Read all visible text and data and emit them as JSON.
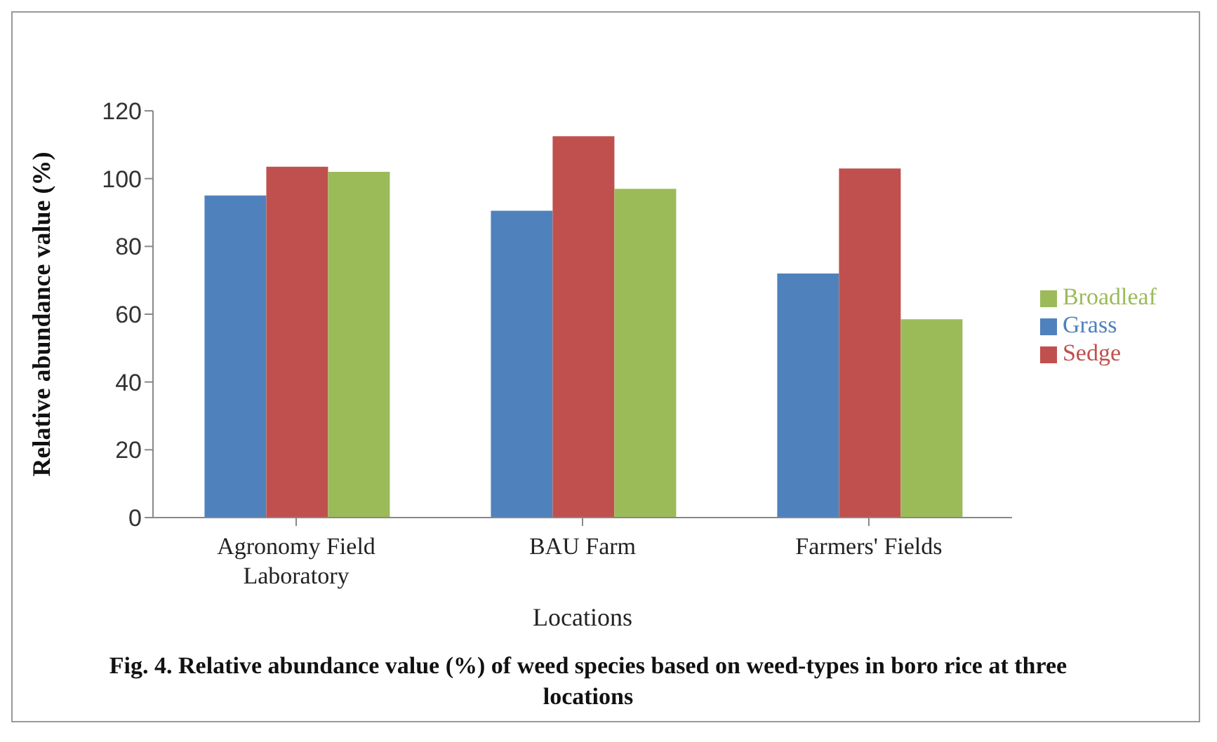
{
  "chart_data": {
    "type": "bar",
    "xlabel": "Locations",
    "ylabel": "Relative abundance value (%)",
    "categories": [
      "Agronomy Field Laboratory",
      "BAU Farm",
      "Farmers' Fields"
    ],
    "series": [
      {
        "name": "Grass",
        "color": "#4f81bd",
        "values": [
          95,
          90.5,
          72
        ]
      },
      {
        "name": "Sedge",
        "color": "#c0504d",
        "values": [
          103.5,
          112.5,
          103
        ]
      },
      {
        "name": "Broadleaf",
        "color": "#9bbb59",
        "values": [
          102,
          97,
          58.5
        ]
      }
    ],
    "ylim": [
      0,
      120
    ],
    "yticks": [
      0,
      20,
      40,
      60,
      80,
      100,
      120
    ],
    "grid": false,
    "legend": "right",
    "annotations": [
      "Fig. 4. Relative abundance value (%) of weed species based on weed-types in boro rice at three locations"
    ]
  }
}
